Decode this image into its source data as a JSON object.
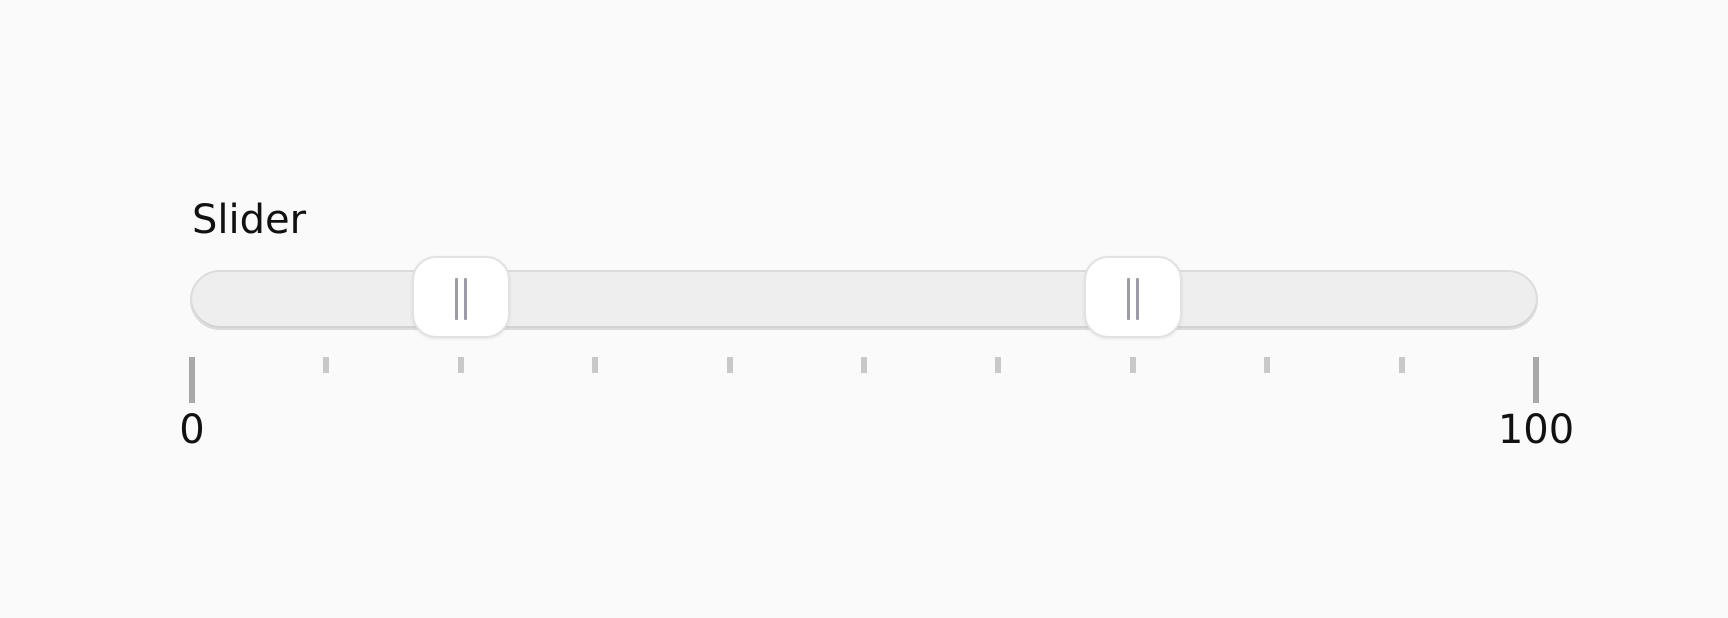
{
  "slider": {
    "label": "Slider",
    "min": 0,
    "max": 100,
    "values": [
      20,
      70
    ],
    "step": 10,
    "min_label": "0",
    "max_label": "100"
  }
}
